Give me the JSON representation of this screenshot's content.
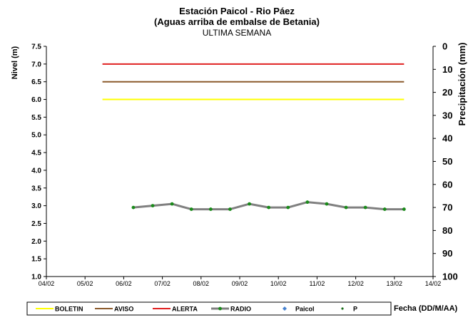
{
  "chart_data": {
    "type": "line",
    "title": "Estación Paicol  - Rio Páez",
    "subtitle": "(Aguas arriba de embalse de Betania)",
    "period_label": "ULTIMA SEMANA",
    "ylabel": "Nivel (m)",
    "y2label": "Precipitación (mm)",
    "xlabel": "Fecha  (DD/M/AA)",
    "ylim": [
      1.0,
      7.5
    ],
    "yticks": [
      "1.0",
      "1.5",
      "2.0",
      "2.5",
      "3.0",
      "3.5",
      "4.0",
      "4.5",
      "5.0",
      "5.5",
      "6.0",
      "6.5",
      "7.0",
      "7.5"
    ],
    "y2lim": [
      0,
      100
    ],
    "y2_reversed": true,
    "y2ticks": [
      "0",
      "10",
      "20",
      "30",
      "40",
      "50",
      "60",
      "70",
      "80",
      "90",
      "100"
    ],
    "xlim": [
      4,
      14
    ],
    "xticks": [
      "04/02",
      "05/02",
      "06/02",
      "07/02",
      "08/02",
      "09/02",
      "10/02",
      "11/02",
      "12/02",
      "13/02",
      "14/02"
    ],
    "grid": false,
    "legend_position": "bottom",
    "thresholds": [
      {
        "name": "BOLETIN",
        "value": 6.0,
        "x_range": [
          5.45,
          13.25
        ],
        "color": "#ffff00"
      },
      {
        "name": "AVISO",
        "value": 6.5,
        "x_range": [
          5.45,
          13.25
        ],
        "color": "#8b5a2b"
      },
      {
        "name": "ALERTA",
        "value": 7.0,
        "x_range": [
          5.45,
          13.25
        ],
        "color": "#e02020"
      }
    ],
    "series": [
      {
        "name": "RADIO",
        "color": "#808080",
        "marker_color": "#1a8a1a",
        "x": [
          6.25,
          6.75,
          7.25,
          7.75,
          8.25,
          8.75,
          9.25,
          9.75,
          10.25,
          10.75,
          11.25,
          11.75,
          12.25,
          12.75,
          13.25
        ],
        "values": [
          2.95,
          3.0,
          3.05,
          2.9,
          2.9,
          2.9,
          3.05,
          2.95,
          2.95,
          3.1,
          3.05,
          2.95,
          2.95,
          2.9,
          2.9
        ]
      },
      {
        "name": "Paicol",
        "color": "#4682d0",
        "values": []
      },
      {
        "name": "P",
        "color": "#1a6e1a",
        "values": []
      }
    ],
    "legend": [
      {
        "label": "BOLETIN",
        "kind": "line",
        "color": "#ffff00"
      },
      {
        "label": "AVISO",
        "kind": "line",
        "color": "#8b5a2b"
      },
      {
        "label": "ALERTA",
        "kind": "line",
        "color": "#e02020"
      },
      {
        "label": "RADIO",
        "kind": "line-marker",
        "color": "#808080",
        "marker_color": "#1a8a1a"
      },
      {
        "label": "Paicol",
        "kind": "diamond",
        "color": "#4682d0"
      },
      {
        "label": "P",
        "kind": "dot",
        "color": "#1a6e1a"
      }
    ]
  }
}
